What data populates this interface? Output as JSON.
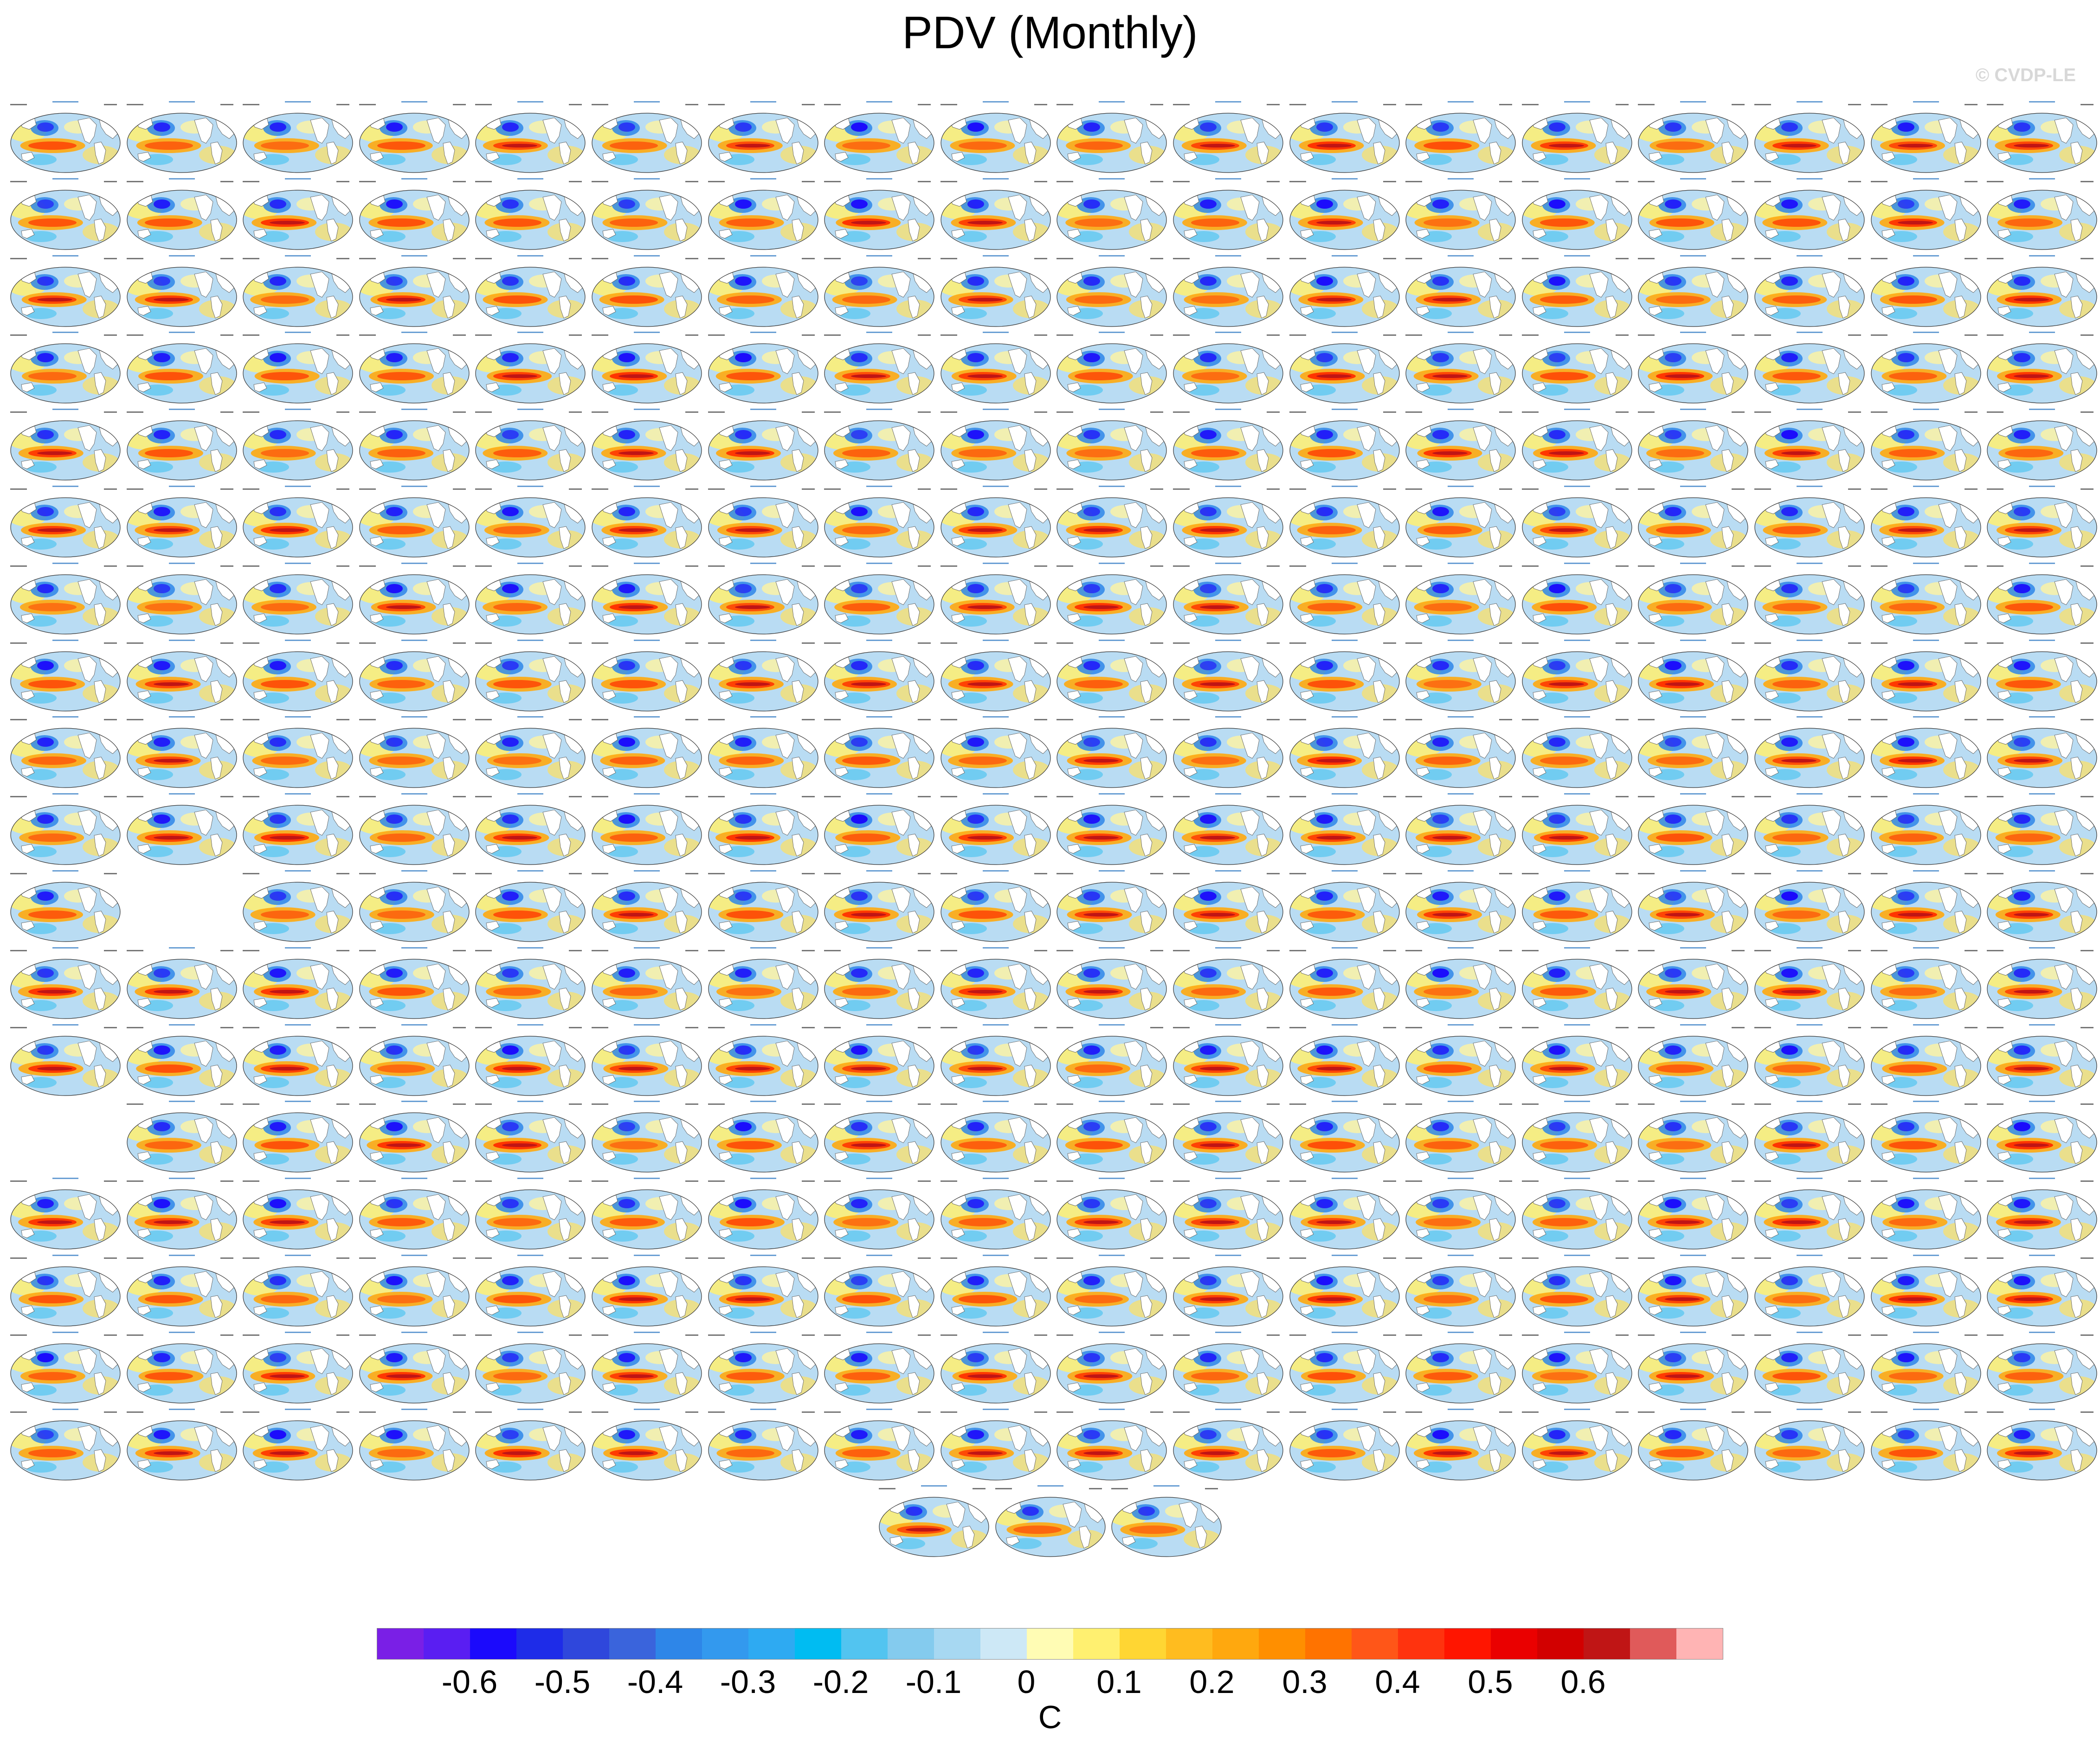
{
  "header": {
    "title": "PDV (Monthly)",
    "watermark": "© CVDP-LE"
  },
  "colorbar": {
    "units": "C",
    "colors": [
      "#7a1fe6",
      "#5a1ef2",
      "#1b0afc",
      "#1e2ce8",
      "#2f47dc",
      "#3a64dc",
      "#2e86e8",
      "#3399ee",
      "#2eaaf2",
      "#00bcf2",
      "#52c4f0",
      "#84cbee",
      "#a7d8f2",
      "#cde8f6",
      "#fffcb4",
      "#fff070",
      "#ffd633",
      "#ffbc1f",
      "#ffa80e",
      "#ff8f00",
      "#ff7300",
      "#ff5618",
      "#ff330e",
      "#ff1500",
      "#ea0000",
      "#d20000",
      "#c01515",
      "#e05a5a",
      "#ffb4b4"
    ],
    "tick_labels": [
      "-0.6",
      "-0.5",
      "-0.4",
      "-0.3",
      "-0.2",
      "-0.1",
      "0",
      "0.1",
      "0.2",
      "0.3",
      "0.4",
      "0.5",
      "0.6"
    ]
  },
  "panels": {
    "row_count": 18,
    "columns_per_row": 18,
    "empty_cells": [
      [
        10,
        1
      ],
      [
        13,
        0
      ]
    ],
    "final_row_count": 3
  }
}
